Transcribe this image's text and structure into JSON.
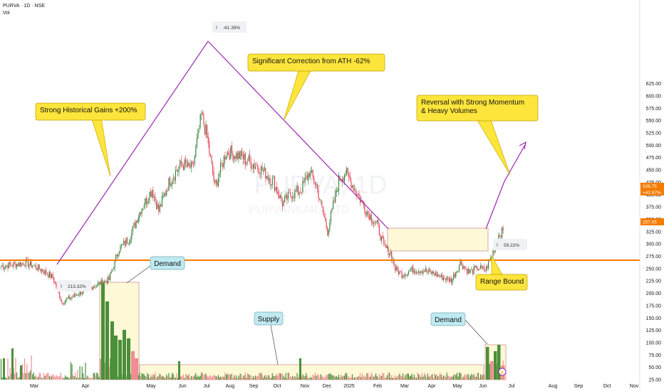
{
  "header": {
    "title": "PURVA · 1D · NSE",
    "vol_label": "Vol"
  },
  "watermark": {
    "symbol": "PURVA, 1D",
    "name": "PURVANKARA LTD"
  },
  "colors": {
    "up": "#2e7d32",
    "down": "#e53950",
    "vol_up": "#4a8f3a",
    "vol_down": "#f08c92",
    "trend": "#9c27b0",
    "support": "#f57c00",
    "callout_yellow": "#fde53b",
    "callout_blue": "#bfeaf2",
    "zone_fill": "#fff9d8",
    "zone_stroke": "#d9a8a8",
    "price_badge": "#f57c00",
    "support_badge": "#f57c00"
  },
  "annotations": {
    "gain": "Strong Historical Gains +200%",
    "correction": "Significant Correction from ATH  -62%",
    "reversal_line1": "Reversal with Strong Momentum",
    "reversal_line2": "& Heavy Volumes",
    "range": "Range Bound",
    "demand_left": "Demand",
    "supply": "Supply",
    "demand_right": "Demand",
    "measure_up": "213.32%",
    "measure_down": "-61.39%",
    "measure_range": "59.22%"
  },
  "price_badges": {
    "last": "326.75",
    "change": "+42.87%",
    "support": "267.05"
  },
  "chart_data": {
    "type": "candlestick",
    "y_axis_ticks": [
      25,
      50,
      75,
      100,
      125,
      150,
      175,
      200,
      225,
      250,
      275,
      300,
      325,
      350,
      375,
      400,
      425,
      450,
      475,
      500,
      525,
      550,
      575,
      600,
      625
    ],
    "y_axis_labels": [
      "25.00",
      "50.00",
      "75.00",
      "100.00",
      "125.00",
      "150.00",
      "175.00",
      "200.00",
      "225.00",
      "250.00",
      "275.00",
      "300.00",
      "325.00",
      "350.00",
      "375.00",
      "400.00",
      "425.00",
      "450.00",
      "475.00",
      "500.00",
      "525.00",
      "550.00",
      "575.00",
      "600.00",
      "625.00"
    ],
    "x_axis_labels": [
      "Mar",
      "Apr",
      "May",
      "Jun",
      "Jul",
      "Aug",
      "Sep",
      "Oct",
      "Nov",
      "Dec",
      "2025",
      "Feb",
      "Mar",
      "Apr",
      "May",
      "Jun",
      "Jul",
      "Aug",
      "Sep",
      "Oct",
      "Nov"
    ],
    "ylim": [
      0,
      640
    ],
    "support_level": 267.05,
    "last_price": 326.75,
    "anchors": [
      {
        "t": 0,
        "p": 255
      },
      {
        "t": 22,
        "p": 262
      },
      {
        "t": 36,
        "p": 248
      },
      {
        "t": 46,
        "p": 232
      },
      {
        "t": 54,
        "p": 182
      },
      {
        "t": 66,
        "p": 196
      },
      {
        "t": 82,
        "p": 215
      },
      {
        "t": 96,
        "p": 228
      },
      {
        "t": 100,
        "p": 255
      },
      {
        "t": 104,
        "p": 288
      },
      {
        "t": 114,
        "p": 312
      },
      {
        "t": 124,
        "p": 370
      },
      {
        "t": 134,
        "p": 410
      },
      {
        "t": 140,
        "p": 368
      },
      {
        "t": 150,
        "p": 430
      },
      {
        "t": 160,
        "p": 462
      },
      {
        "t": 170,
        "p": 452
      },
      {
        "t": 178,
        "p": 560
      },
      {
        "t": 182,
        "p": 528
      },
      {
        "t": 190,
        "p": 415
      },
      {
        "t": 200,
        "p": 488
      },
      {
        "t": 212,
        "p": 478
      },
      {
        "t": 224,
        "p": 462
      },
      {
        "t": 232,
        "p": 450
      },
      {
        "t": 242,
        "p": 425
      },
      {
        "t": 250,
        "p": 382
      },
      {
        "t": 258,
        "p": 402
      },
      {
        "t": 266,
        "p": 408
      },
      {
        "t": 274,
        "p": 446
      },
      {
        "t": 280,
        "p": 420
      },
      {
        "t": 290,
        "p": 325
      },
      {
        "t": 300,
        "p": 430
      },
      {
        "t": 306,
        "p": 445
      },
      {
        "t": 312,
        "p": 420
      },
      {
        "t": 318,
        "p": 395
      },
      {
        "t": 326,
        "p": 362
      },
      {
        "t": 334,
        "p": 338
      },
      {
        "t": 340,
        "p": 295
      },
      {
        "t": 346,
        "p": 282
      },
      {
        "t": 350,
        "p": 250
      },
      {
        "t": 356,
        "p": 238
      },
      {
        "t": 366,
        "p": 248
      },
      {
        "t": 376,
        "p": 246
      },
      {
        "t": 384,
        "p": 240
      },
      {
        "t": 392,
        "p": 232
      },
      {
        "t": 400,
        "p": 226
      },
      {
        "t": 408,
        "p": 262
      },
      {
        "t": 416,
        "p": 242
      },
      {
        "t": 424,
        "p": 252
      },
      {
        "t": 430,
        "p": 246
      },
      {
        "t": 434,
        "p": 265
      },
      {
        "t": 438,
        "p": 290
      },
      {
        "t": 442,
        "p": 318
      },
      {
        "t": 446,
        "p": 327
      }
    ]
  }
}
